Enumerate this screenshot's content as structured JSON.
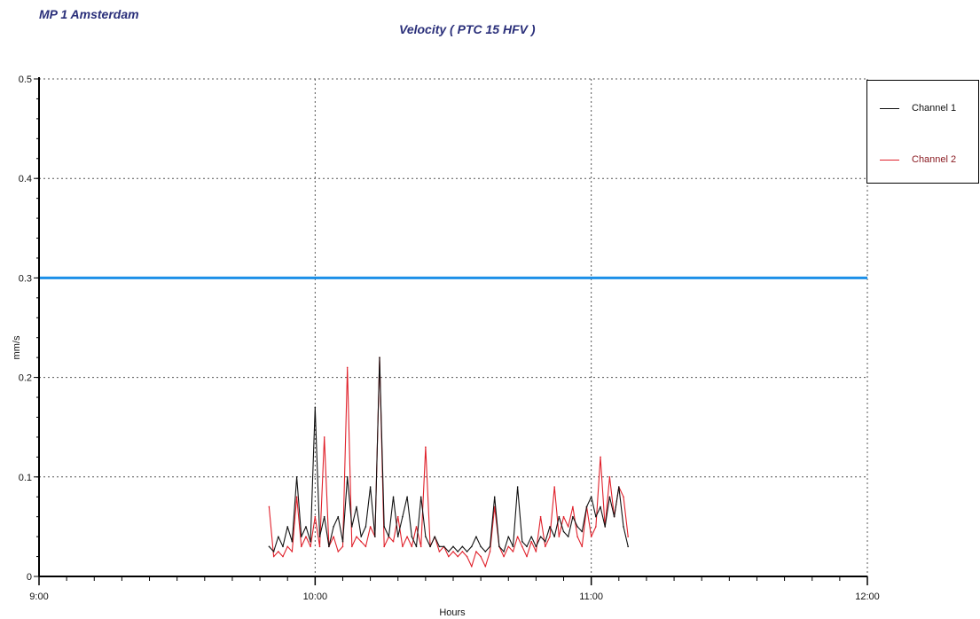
{
  "header": {
    "site": "MP 1 Amsterdam",
    "title": "Velocity  ( PTC 15 HFV )"
  },
  "colors": {
    "channel1": "#111111",
    "channel2": "#e0212b",
    "threshold": "#1b8fe8",
    "grid": "#555555",
    "title_text": "#2a2f7a"
  },
  "legend": {
    "placement": "top-right",
    "items": [
      {
        "label": "Channel 1",
        "color": "#111111"
      },
      {
        "label": "Channel 2",
        "color": "#e0212b"
      }
    ]
  },
  "chart_data": {
    "type": "line",
    "title": "Velocity  ( PTC 15 HFV )",
    "xlabel": "Hours",
    "ylabel": "mm/s",
    "xlim": [
      "9:00",
      "12:00"
    ],
    "ylim": [
      0,
      0.5
    ],
    "grid": true,
    "x_ticks": [
      "9:00",
      "10:00",
      "11:00",
      "12:00"
    ],
    "y_ticks": [
      "0",
      "0.1",
      "0.2",
      "0.3",
      "0.4",
      "0.5"
    ],
    "threshold": {
      "value": 0.3,
      "color": "#1b8fe8"
    },
    "series": [
      {
        "name": "Channel 1",
        "color": "#111111",
        "points": [
          [
            "9:50",
            0.03
          ],
          [
            "9:51",
            0.025
          ],
          [
            "9:52",
            0.04
          ],
          [
            "9:53",
            0.03
          ],
          [
            "9:54",
            0.05
          ],
          [
            "9:55",
            0.035
          ],
          [
            "9:56",
            0.1
          ],
          [
            "9:57",
            0.04
          ],
          [
            "9:58",
            0.05
          ],
          [
            "9:59",
            0.035
          ],
          [
            "10:00",
            0.17
          ],
          [
            "10:01",
            0.04
          ],
          [
            "10:02",
            0.06
          ],
          [
            "10:03",
            0.03
          ],
          [
            "10:04",
            0.05
          ],
          [
            "10:05",
            0.06
          ],
          [
            "10:06",
            0.035
          ],
          [
            "10:07",
            0.1
          ],
          [
            "10:08",
            0.05
          ],
          [
            "10:09",
            0.07
          ],
          [
            "10:10",
            0.04
          ],
          [
            "10:11",
            0.05
          ],
          [
            "10:12",
            0.09
          ],
          [
            "10:13",
            0.04
          ],
          [
            "10:14",
            0.22
          ],
          [
            "10:15",
            0.05
          ],
          [
            "10:16",
            0.04
          ],
          [
            "10:17",
            0.08
          ],
          [
            "10:18",
            0.04
          ],
          [
            "10:19",
            0.06
          ],
          [
            "10:20",
            0.08
          ],
          [
            "10:21",
            0.04
          ],
          [
            "10:22",
            0.03
          ],
          [
            "10:23",
            0.08
          ],
          [
            "10:24",
            0.04
          ],
          [
            "10:25",
            0.03
          ],
          [
            "10:26",
            0.04
          ],
          [
            "10:27",
            0.03
          ],
          [
            "10:28",
            0.03
          ],
          [
            "10:29",
            0.025
          ],
          [
            "10:30",
            0.03
          ],
          [
            "10:31",
            0.025
          ],
          [
            "10:32",
            0.03
          ],
          [
            "10:33",
            0.025
          ],
          [
            "10:34",
            0.03
          ],
          [
            "10:35",
            0.04
          ],
          [
            "10:36",
            0.03
          ],
          [
            "10:37",
            0.025
          ],
          [
            "10:38",
            0.03
          ],
          [
            "10:39",
            0.08
          ],
          [
            "10:40",
            0.03
          ],
          [
            "10:41",
            0.025
          ],
          [
            "10:42",
            0.04
          ],
          [
            "10:43",
            0.03
          ],
          [
            "10:44",
            0.09
          ],
          [
            "10:45",
            0.035
          ],
          [
            "10:46",
            0.03
          ],
          [
            "10:47",
            0.04
          ],
          [
            "10:48",
            0.03
          ],
          [
            "10:49",
            0.04
          ],
          [
            "10:50",
            0.035
          ],
          [
            "10:51",
            0.05
          ],
          [
            "10:52",
            0.04
          ],
          [
            "10:53",
            0.06
          ],
          [
            "10:54",
            0.045
          ],
          [
            "10:55",
            0.04
          ],
          [
            "10:56",
            0.06
          ],
          [
            "10:57",
            0.05
          ],
          [
            "10:58",
            0.045
          ],
          [
            "10:59",
            0.07
          ],
          [
            "11:00",
            0.08
          ],
          [
            "11:01",
            0.06
          ],
          [
            "11:02",
            0.07
          ],
          [
            "11:03",
            0.05
          ],
          [
            "11:04",
            0.08
          ],
          [
            "11:05",
            0.06
          ],
          [
            "11:06",
            0.09
          ],
          [
            "11:07",
            0.05
          ],
          [
            "11:08",
            0.03
          ]
        ]
      },
      {
        "name": "Channel 2",
        "color": "#e0212b",
        "points": [
          [
            "9:50",
            0.07
          ],
          [
            "9:51",
            0.02
          ],
          [
            "9:52",
            0.025
          ],
          [
            "9:53",
            0.02
          ],
          [
            "9:54",
            0.03
          ],
          [
            "9:55",
            0.025
          ],
          [
            "9:56",
            0.08
          ],
          [
            "9:57",
            0.03
          ],
          [
            "9:58",
            0.04
          ],
          [
            "9:59",
            0.03
          ],
          [
            "10:00",
            0.06
          ],
          [
            "10:01",
            0.03
          ],
          [
            "10:02",
            0.14
          ],
          [
            "10:03",
            0.03
          ],
          [
            "10:04",
            0.04
          ],
          [
            "10:05",
            0.025
          ],
          [
            "10:06",
            0.03
          ],
          [
            "10:07",
            0.21
          ],
          [
            "10:08",
            0.03
          ],
          [
            "10:09",
            0.04
          ],
          [
            "10:10",
            0.035
          ],
          [
            "10:11",
            0.03
          ],
          [
            "10:12",
            0.05
          ],
          [
            "10:13",
            0.04
          ],
          [
            "10:14",
            0.22
          ],
          [
            "10:15",
            0.03
          ],
          [
            "10:16",
            0.04
          ],
          [
            "10:17",
            0.035
          ],
          [
            "10:18",
            0.06
          ],
          [
            "10:19",
            0.03
          ],
          [
            "10:20",
            0.04
          ],
          [
            "10:21",
            0.03
          ],
          [
            "10:22",
            0.05
          ],
          [
            "10:23",
            0.03
          ],
          [
            "10:24",
            0.13
          ],
          [
            "10:25",
            0.03
          ],
          [
            "10:26",
            0.04
          ],
          [
            "10:27",
            0.025
          ],
          [
            "10:28",
            0.03
          ],
          [
            "10:29",
            0.02
          ],
          [
            "10:30",
            0.025
          ],
          [
            "10:31",
            0.02
          ],
          [
            "10:32",
            0.025
          ],
          [
            "10:33",
            0.02
          ],
          [
            "10:34",
            0.01
          ],
          [
            "10:35",
            0.025
          ],
          [
            "10:36",
            0.02
          ],
          [
            "10:37",
            0.01
          ],
          [
            "10:38",
            0.025
          ],
          [
            "10:39",
            0.07
          ],
          [
            "10:40",
            0.03
          ],
          [
            "10:41",
            0.02
          ],
          [
            "10:42",
            0.03
          ],
          [
            "10:43",
            0.025
          ],
          [
            "10:44",
            0.04
          ],
          [
            "10:45",
            0.03
          ],
          [
            "10:46",
            0.02
          ],
          [
            "10:47",
            0.035
          ],
          [
            "10:48",
            0.025
          ],
          [
            "10:49",
            0.06
          ],
          [
            "10:50",
            0.03
          ],
          [
            "10:51",
            0.04
          ],
          [
            "10:52",
            0.09
          ],
          [
            "10:53",
            0.04
          ],
          [
            "10:54",
            0.06
          ],
          [
            "10:55",
            0.05
          ],
          [
            "10:56",
            0.07
          ],
          [
            "10:57",
            0.04
          ],
          [
            "10:58",
            0.03
          ],
          [
            "10:59",
            0.07
          ],
          [
            "11:00",
            0.04
          ],
          [
            "11:01",
            0.05
          ],
          [
            "11:02",
            0.12
          ],
          [
            "11:03",
            0.05
          ],
          [
            "11:04",
            0.1
          ],
          [
            "11:05",
            0.06
          ],
          [
            "11:06",
            0.09
          ],
          [
            "11:07",
            0.08
          ],
          [
            "11:08",
            0.04
          ]
        ]
      }
    ]
  }
}
